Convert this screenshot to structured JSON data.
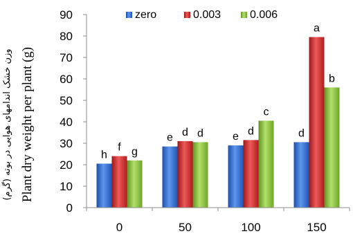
{
  "chart_data": {
    "type": "bar",
    "categories": [
      "0",
      "50",
      "100",
      "150"
    ],
    "series": [
      {
        "name": "zero",
        "values": [
          20.5,
          28.5,
          29.0,
          30.5
        ],
        "labels": [
          "h",
          "e",
          "e",
          "d"
        ]
      },
      {
        "name": "0.003",
        "values": [
          24.0,
          31.0,
          31.5,
          79.5
        ],
        "labels": [
          "f",
          "d",
          "d",
          "a"
        ]
      },
      {
        "name": "0.006",
        "values": [
          22.0,
          30.5,
          40.5,
          56.0
        ],
        "labels": [
          "g",
          "d",
          "c",
          "b"
        ]
      }
    ],
    "ylim": [
      0,
      90
    ],
    "yticks": [
      "0",
      "10",
      "20",
      "30",
      "40",
      "50",
      "60",
      "70",
      "80",
      "90"
    ],
    "ylabel": "Plant dry weight per plant (g)",
    "ylabel_secondary": "وزن خشک اندامهای هوایی در بوته (گرم)",
    "xlabel": "",
    "grid": false,
    "legend_position": "top",
    "colors": [
      "#2f6fd3",
      "#d42a2a",
      "#8cc43a"
    ]
  }
}
